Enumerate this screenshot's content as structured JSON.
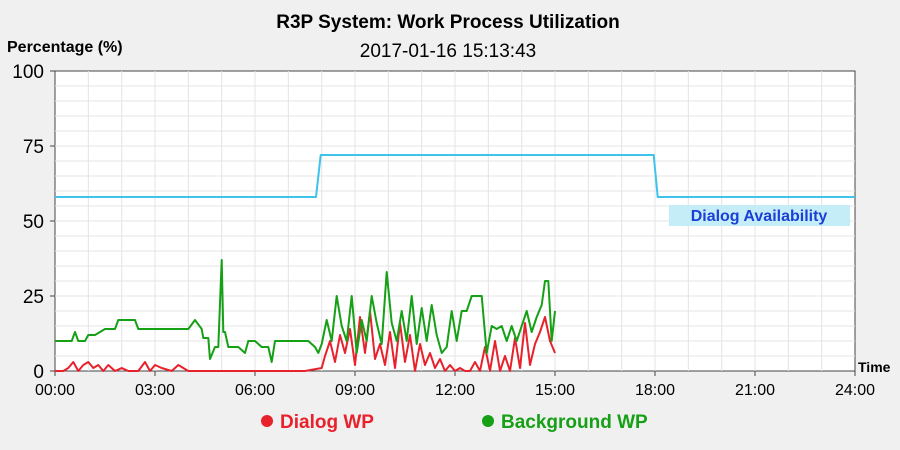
{
  "chart_data": {
    "type": "line",
    "title": "R3P System: Work Process Utilization",
    "subtitle": "2017-01-16 15:13:43",
    "ylabel": "Percentage (%)",
    "xlabel": "Time",
    "x_tick_labels": [
      "00:00",
      "03:00",
      "06:00",
      "09:00",
      "12:00",
      "15:00",
      "18:00",
      "21:00",
      "24:00"
    ],
    "y_ticks": [
      0,
      25,
      50,
      75,
      100
    ],
    "ylim": [
      0,
      100
    ],
    "xlim_hours": [
      0,
      24
    ],
    "grid": true,
    "legend": {
      "placement": "bottom",
      "items": [
        {
          "label": "Dialog WP",
          "color": "#e8222c"
        },
        {
          "label": "Background WP",
          "color": "#16a016"
        }
      ]
    },
    "annotation": {
      "text": "Dialog Availability",
      "color": "#1a40d8",
      "background": "#c5edf7"
    },
    "series": [
      {
        "name": "Dialog Availability",
        "color": "#3ec3ec",
        "x": [
          0,
          7.83,
          7.97,
          17.96,
          18.08,
          24
        ],
        "y": [
          58,
          58,
          72,
          72,
          58,
          58
        ]
      },
      {
        "name": "Dialog WP",
        "color": "#e8222c",
        "x": [
          0,
          0.25,
          0.4,
          0.55,
          0.7,
          0.85,
          1,
          1.15,
          1.3,
          1.45,
          1.6,
          1.8,
          2.0,
          2.2,
          2.5,
          2.7,
          2.85,
          3.0,
          3.2,
          3.5,
          3.7,
          4.0,
          4.3,
          4.6,
          5.0,
          5.4,
          6.0,
          6.5,
          7.0,
          7.5,
          8.0,
          8.1,
          8.25,
          8.4,
          8.55,
          8.7,
          8.85,
          9.0,
          9.15,
          9.3,
          9.45,
          9.6,
          9.75,
          9.9,
          10.05,
          10.2,
          10.35,
          10.5,
          10.65,
          10.8,
          10.95,
          11.1,
          11.25,
          11.4,
          11.55,
          11.7,
          11.85,
          12.0,
          12.15,
          12.3,
          12.45,
          12.6,
          12.75,
          12.9,
          13.05,
          13.2,
          13.35,
          13.5,
          13.65,
          13.8,
          13.95,
          14.1,
          14.25,
          14.4,
          14.55,
          14.7,
          14.85,
          15.0
        ],
        "y": [
          0,
          0,
          1,
          3,
          0,
          2,
          3,
          1,
          2,
          0,
          2,
          0,
          1,
          0,
          0,
          3,
          0,
          2,
          1,
          0,
          2,
          0,
          0,
          0,
          0,
          0,
          0,
          0,
          0,
          0,
          1,
          5,
          10,
          3,
          12,
          6,
          14,
          2,
          18,
          6,
          20,
          4,
          9,
          2,
          13,
          1,
          16,
          3,
          12,
          0,
          9,
          2,
          6,
          1,
          4,
          0,
          2,
          0,
          1,
          0,
          0,
          3,
          0,
          8,
          0,
          10,
          0,
          5,
          0,
          11,
          1,
          16,
          2,
          9,
          13,
          18,
          10,
          6
        ]
      },
      {
        "name": "Background WP",
        "color": "#16a016",
        "x": [
          0,
          0.3,
          0.5,
          0.6,
          0.7,
          0.9,
          1.0,
          1.2,
          1.5,
          1.8,
          1.9,
          2.1,
          2.4,
          2.5,
          2.7,
          3.0,
          3.3,
          3.6,
          4.0,
          4.2,
          4.4,
          4.45,
          4.6,
          4.65,
          4.8,
          4.9,
          5.0,
          5.05,
          5.1,
          5.2,
          5.3,
          5.5,
          5.7,
          5.8,
          6.0,
          6.2,
          6.4,
          6.5,
          6.6,
          7.0,
          7.3,
          7.6,
          7.8,
          7.9,
          8.0,
          8.15,
          8.3,
          8.45,
          8.6,
          8.75,
          8.9,
          9.05,
          9.2,
          9.35,
          9.5,
          9.65,
          9.8,
          9.95,
          10.1,
          10.25,
          10.4,
          10.55,
          10.7,
          10.85,
          11.0,
          11.15,
          11.3,
          11.45,
          11.6,
          11.75,
          11.9,
          12.05,
          12.2,
          12.35,
          12.5,
          12.65,
          12.8,
          12.95,
          13.1,
          13.25,
          13.4,
          13.55,
          13.7,
          13.85,
          14.0,
          14.15,
          14.3,
          14.45,
          14.6,
          14.7,
          14.8,
          14.9,
          15.0
        ],
        "y": [
          10,
          10,
          10,
          13,
          10,
          10,
          12,
          12,
          14,
          14,
          17,
          17,
          17,
          14,
          14,
          14,
          14,
          14,
          14,
          17,
          14,
          11,
          11,
          4,
          8,
          8,
          37,
          13,
          13,
          8,
          8,
          8,
          6,
          10,
          10,
          8,
          8,
          3,
          10,
          10,
          10,
          10,
          8,
          6,
          9,
          17,
          10,
          25,
          15,
          10,
          25,
          6,
          17,
          10,
          25,
          16,
          9,
          33,
          16,
          10,
          20,
          10,
          25,
          9,
          21,
          10,
          22,
          12,
          6,
          8,
          20,
          10,
          20,
          20,
          25,
          25,
          25,
          6,
          15,
          14,
          15,
          10,
          15,
          10,
          15,
          20,
          13,
          18,
          22,
          30,
          30,
          10,
          20
        ]
      }
    ]
  }
}
